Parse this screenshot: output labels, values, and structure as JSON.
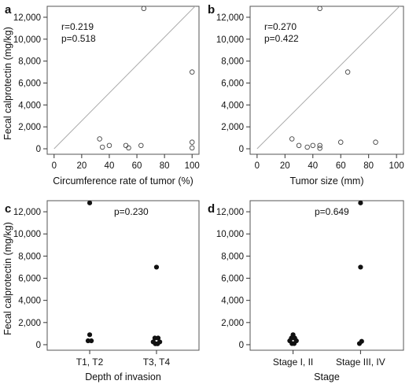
{
  "chart_data": [
    {
      "panel": "a",
      "type": "scatter",
      "xlabel": "Circumference rate of tumor (%)",
      "ylabel": "Fecal calprotectin (mg/kg)",
      "xlim": [
        -5,
        105
      ],
      "ylim": [
        -500,
        13000
      ],
      "xticks": [
        0,
        20,
        40,
        60,
        80,
        100
      ],
      "xtick_labels": [
        "0",
        "20",
        "40",
        "60",
        "80",
        "100"
      ],
      "yticks": [
        0,
        2000,
        4000,
        6000,
        8000,
        10000,
        12000
      ],
      "ytick_labels": [
        "0",
        "2,000",
        "4,000",
        "6,000",
        "8,000",
        "10,000",
        "12,000"
      ],
      "annotations": [
        "r=0.219",
        "p=0.518"
      ],
      "reference_line": true,
      "marker": "open",
      "points": [
        {
          "x": 33,
          "y": 900
        },
        {
          "x": 35,
          "y": 150
        },
        {
          "x": 40,
          "y": 300
        },
        {
          "x": 52,
          "y": 300
        },
        {
          "x": 54,
          "y": 80
        },
        {
          "x": 63,
          "y": 300
        },
        {
          "x": 65,
          "y": 12800
        },
        {
          "x": 100,
          "y": 7000
        },
        {
          "x": 100,
          "y": 600
        },
        {
          "x": 100,
          "y": 80
        }
      ]
    },
    {
      "panel": "b",
      "type": "scatter",
      "xlabel": "Tumor size (mm)",
      "ylabel": "",
      "xlim": [
        -5,
        105
      ],
      "ylim": [
        -500,
        13000
      ],
      "xticks": [
        0,
        20,
        40,
        60,
        80,
        100
      ],
      "xtick_labels": [
        "0",
        "20",
        "40",
        "60",
        "80",
        "100"
      ],
      "yticks": [
        0,
        2000,
        4000,
        6000,
        8000,
        10000,
        12000
      ],
      "ytick_labels": [
        "0",
        "2,000",
        "4,000",
        "6,000",
        "8,000",
        "10,000",
        "12,000"
      ],
      "annotations": [
        "r=0.270",
        "p=0.422"
      ],
      "reference_line": true,
      "marker": "open",
      "points": [
        {
          "x": 25,
          "y": 900
        },
        {
          "x": 30,
          "y": 300
        },
        {
          "x": 36,
          "y": 150
        },
        {
          "x": 40,
          "y": 300
        },
        {
          "x": 45,
          "y": 300
        },
        {
          "x": 45,
          "y": 50
        },
        {
          "x": 45,
          "y": 12800
        },
        {
          "x": 60,
          "y": 600
        },
        {
          "x": 65,
          "y": 7000
        },
        {
          "x": 85,
          "y": 600
        }
      ]
    },
    {
      "panel": "c",
      "type": "scatter",
      "xlabel": "Depth of invasion",
      "ylabel": "Fecal calprotectin (mg/kg)",
      "categories": [
        "T1, T2",
        "T3, T4"
      ],
      "ylim": [
        -500,
        13000
      ],
      "yticks": [
        0,
        2000,
        4000,
        6000,
        8000,
        10000,
        12000
      ],
      "ytick_labels": [
        "0",
        "2,000",
        "4,000",
        "6,000",
        "8,000",
        "10,000",
        "12,000"
      ],
      "annotations": [
        "p=0.230"
      ],
      "marker": "filled",
      "points": [
        {
          "category": 0,
          "jitter": 0.0,
          "y": 12800
        },
        {
          "category": 0,
          "jitter": 0.0,
          "y": 900
        },
        {
          "category": 0,
          "jitter": -0.06,
          "y": 350
        },
        {
          "category": 0,
          "jitter": 0.06,
          "y": 350
        },
        {
          "category": 1,
          "jitter": 0.0,
          "y": 7000
        },
        {
          "category": 1,
          "jitter": -0.06,
          "y": 600
        },
        {
          "category": 1,
          "jitter": 0.06,
          "y": 600
        },
        {
          "category": 1,
          "jitter": -0.12,
          "y": 250
        },
        {
          "category": 1,
          "jitter": 0.12,
          "y": 250
        },
        {
          "category": 1,
          "jitter": -0.04,
          "y": 80
        },
        {
          "category": 1,
          "jitter": 0.04,
          "y": 80
        }
      ]
    },
    {
      "panel": "d",
      "type": "scatter",
      "xlabel": "Stage",
      "ylabel": "",
      "categories": [
        "Stage I, II",
        "Stage III, IV"
      ],
      "ylim": [
        -500,
        13000
      ],
      "yticks": [
        0,
        2000,
        4000,
        6000,
        8000,
        10000,
        12000
      ],
      "ytick_labels": [
        "0",
        "2,000",
        "4,000",
        "6,000",
        "8,000",
        "10,000",
        "12,000"
      ],
      "annotations": [
        "p=0.649"
      ],
      "marker": "filled",
      "points": [
        {
          "category": 0,
          "jitter": 0.0,
          "y": 900
        },
        {
          "category": 0,
          "jitter": -0.06,
          "y": 600
        },
        {
          "category": 0,
          "jitter": 0.06,
          "y": 600
        },
        {
          "category": 0,
          "jitter": -0.12,
          "y": 350
        },
        {
          "category": 0,
          "jitter": 0.12,
          "y": 350
        },
        {
          "category": 0,
          "jitter": -0.04,
          "y": 100
        },
        {
          "category": 0,
          "jitter": 0.04,
          "y": 100
        },
        {
          "category": 1,
          "jitter": 0.0,
          "y": 12800
        },
        {
          "category": 1,
          "jitter": 0.0,
          "y": 7000
        },
        {
          "category": 1,
          "jitter": 0.04,
          "y": 300
        },
        {
          "category": 1,
          "jitter": -0.04,
          "y": 100
        }
      ]
    }
  ]
}
